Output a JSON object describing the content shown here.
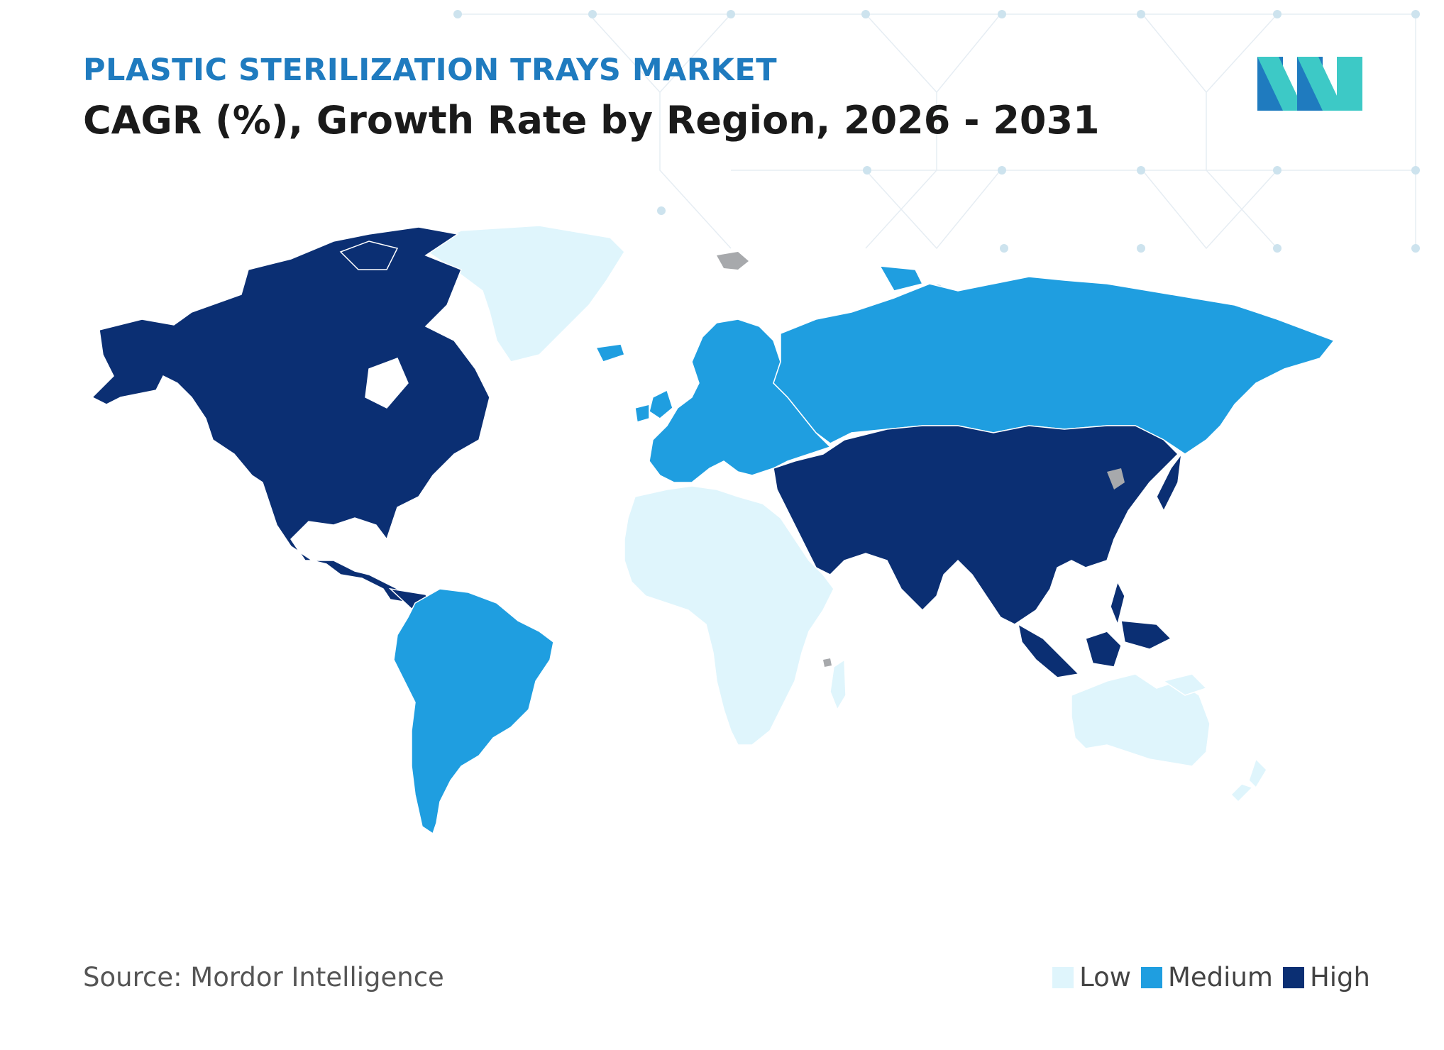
{
  "header": {
    "kicker": "PLASTIC STERILIZATION TRAYS MARKET",
    "title": "CAGR (%), Growth Rate by Region, 2026 - 2031"
  },
  "colors": {
    "kicker": "#1f7bbf",
    "low": "#dff5fc",
    "medium": "#1f9ee0",
    "high": "#0b2f73",
    "no_data": "#a7a9ac",
    "logo_dark": "#1f7bbf",
    "logo_teal": "#3dc9c6"
  },
  "legend": {
    "items": [
      {
        "label": "Low",
        "color": "#dff5fc"
      },
      {
        "label": "Medium",
        "color": "#1f9ee0"
      },
      {
        "label": "High",
        "color": "#0b2f73"
      }
    ]
  },
  "map_data": {
    "regions": [
      {
        "region": "North America",
        "level": "High"
      },
      {
        "region": "South America",
        "level": "Medium"
      },
      {
        "region": "Europe",
        "level": "Medium"
      },
      {
        "region": "Asia",
        "level": "High"
      },
      {
        "region": "Africa",
        "level": "Low"
      },
      {
        "region": "Australia and New Zealand",
        "level": "Low"
      },
      {
        "region": "Greenland",
        "level": "Low"
      }
    ]
  },
  "footer": {
    "source": "Source: Mordor Intelligence"
  }
}
